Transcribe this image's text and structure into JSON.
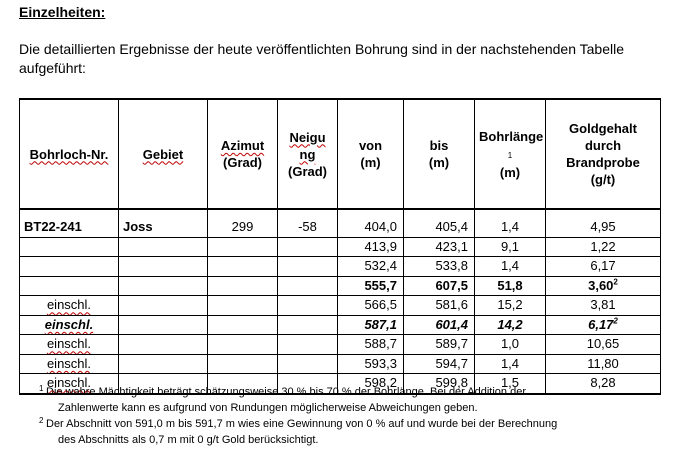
{
  "heading": "Einzelheiten:",
  "intro": "Die detaillierten Ergebnisse der heute veröffentlichten Bohrung sind in der nachstehenden Tabelle aufgeführt:",
  "table": {
    "headers": {
      "hole": "Bohrloch-Nr.",
      "area": "Gebiet",
      "azimuth_line1": "Azimut",
      "azimuth_line2": "(Grad)",
      "tilt_line1": "Neigu",
      "tilt_line2": "ng",
      "tilt_line3": "(Grad)",
      "from_line1": "von",
      "from_line2": "(m)",
      "to_line1": "bis",
      "to_line2": "(m)",
      "length_line1": "Bohrlänge",
      "length_footnote": "1",
      "length_line3": "(m)",
      "gold_line1": "Goldgehalt",
      "gold_line2": "durch",
      "gold_line3": "Brandprobe",
      "gold_line4": "(g/t)"
    },
    "rows": [
      {
        "hole": "BT22-241",
        "area": "Joss",
        "azimuth": "299",
        "tilt": "-58",
        "from": "404,0",
        "to": "405,4",
        "length": "1,4",
        "gold": "4,95",
        "gold_sup": "",
        "label": ""
      },
      {
        "hole": "",
        "area": "",
        "azimuth": "",
        "tilt": "",
        "from": "413,9",
        "to": "423,1",
        "length": "9,1",
        "gold": "1,22",
        "gold_sup": "",
        "label": ""
      },
      {
        "hole": "",
        "area": "",
        "azimuth": "",
        "tilt": "",
        "from": "532,4",
        "to": "533,8",
        "length": "1,4",
        "gold": "6,17",
        "gold_sup": "",
        "label": ""
      },
      {
        "hole": "",
        "area": "",
        "azimuth": "",
        "tilt": "",
        "from": "555,7",
        "to": "607,5",
        "length": "51,8",
        "gold": "3,60",
        "gold_sup": "2",
        "label": ""
      },
      {
        "hole": "",
        "area": "",
        "azimuth": "",
        "tilt": "",
        "from": "566,5",
        "to": "581,6",
        "length": "15,2",
        "gold": "3,81",
        "gold_sup": "",
        "label": "einschl."
      },
      {
        "hole": "",
        "area": "",
        "azimuth": "",
        "tilt": "",
        "from": "587,1",
        "to": "601,4",
        "length": "14,2",
        "gold": "6,17",
        "gold_sup": "2",
        "label": "einschl."
      },
      {
        "hole": "",
        "area": "",
        "azimuth": "",
        "tilt": "",
        "from": "588,7",
        "to": "589,7",
        "length": "1,0",
        "gold": "10,65",
        "gold_sup": "",
        "label": "einschl."
      },
      {
        "hole": "",
        "area": "",
        "azimuth": "",
        "tilt": "",
        "from": "593,3",
        "to": "594,7",
        "length": "1,4",
        "gold": "11,80",
        "gold_sup": "",
        "label": "einschl."
      },
      {
        "hole": "",
        "area": "",
        "azimuth": "",
        "tilt": "",
        "from": "598,2",
        "to": "599,8",
        "length": "1,5",
        "gold": "8,28",
        "gold_sup": "",
        "label": "einschl."
      }
    ]
  },
  "footnotes": [
    {
      "mark": "1",
      "line1": "Die wahre Mächtigkeit beträgt schätzungsweise 30 % bis 70 % der Bohrlänge. Bei der Addition der",
      "line2": "Zahlenwerte kann es aufgrund von Rundungen möglicherweise Abweichungen geben."
    },
    {
      "mark": "2",
      "line1": "Der Abschnitt von 591,0 m bis 591,7 m wies eine Gewinnung von 0 % auf und wurde bei der Berechnung",
      "line2": "des Abschnitts als 0,7 m mit 0 g/t Gold berücksichtigt."
    }
  ]
}
